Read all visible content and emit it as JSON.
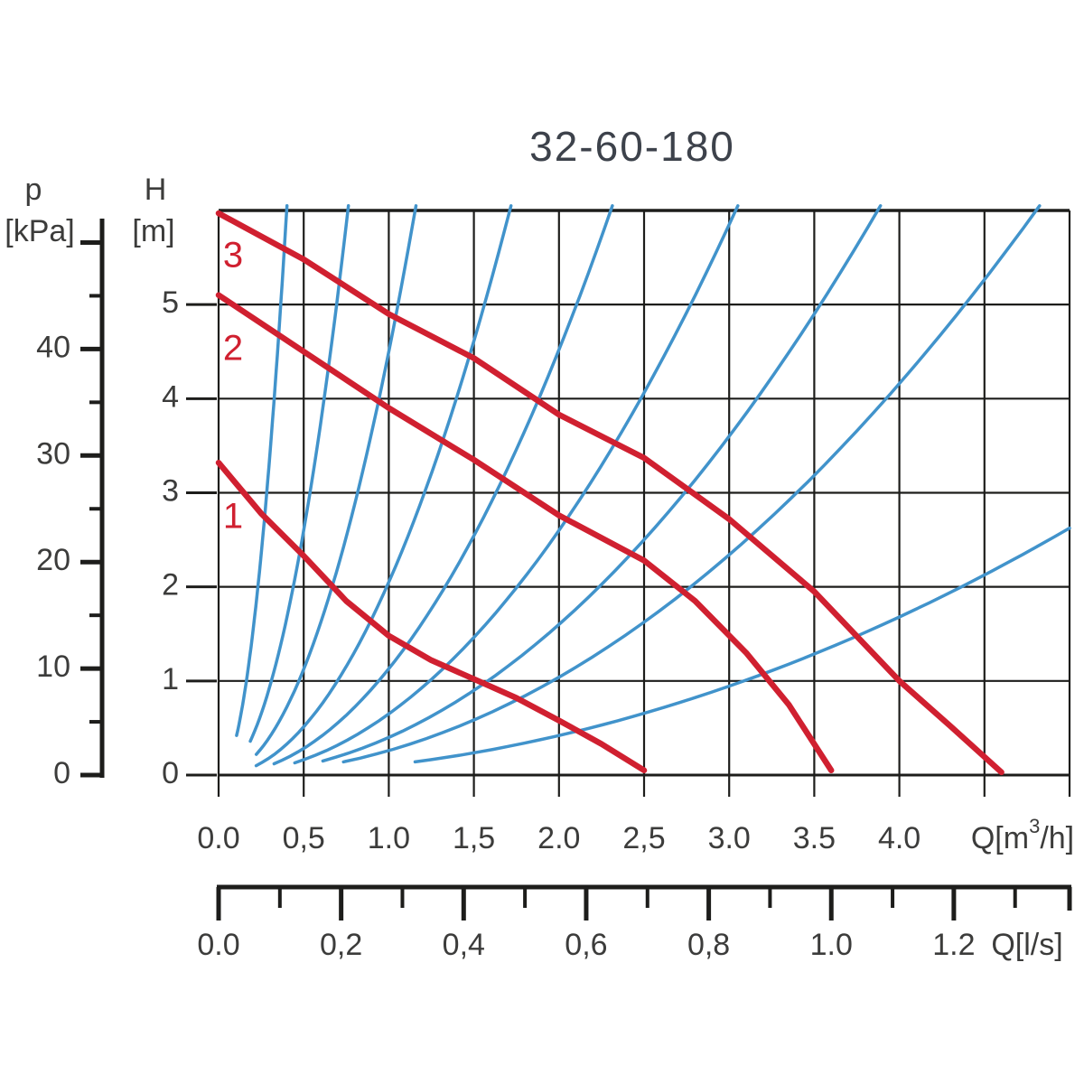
{
  "title": "32-60-180",
  "colors": {
    "pump_curve_red": "#d02030",
    "system_curve_blue": "#4193cb",
    "ink": "#1d1d1b",
    "text": "#3c3c3b",
    "title_text": "#3d424b"
  },
  "pressure_axis": {
    "name": "p",
    "unit": "[kPa]",
    "tick_labels": [
      "0",
      "10",
      "20",
      "30",
      "40"
    ],
    "tick_values": [
      0,
      10,
      20,
      30,
      40
    ],
    "range": [
      0,
      50
    ],
    "minor_step": 5,
    "major_step": 10
  },
  "head_axis": {
    "name": "H",
    "unit": "[m]",
    "tick_labels": [
      "0",
      "1",
      "2",
      "3",
      "4",
      "5"
    ],
    "tick_values": [
      0,
      1,
      2,
      3,
      4,
      5
    ]
  },
  "flow_axis_m3h": {
    "tick_labels": [
      "0.0",
      "0,5",
      "1.0",
      "1,5",
      "2.0",
      "2,5",
      "3.0",
      "3.5",
      "4.0"
    ],
    "tick_values": [
      0,
      0.5,
      1.0,
      1.5,
      2.0,
      2.5,
      3.0,
      3.5,
      4.0
    ],
    "unit_parts": {
      "pre": "Q[m",
      "sup": "3",
      "post": "/h]"
    }
  },
  "flow_axis_ls": {
    "tick_labels": [
      "0.0",
      "0,2",
      "0,4",
      "0,6",
      "0,8",
      "1.0",
      "1.2"
    ],
    "tick_values": [
      0,
      0.2,
      0.4,
      0.6,
      0.8,
      1.0,
      1.2
    ],
    "minor_step": 0.1,
    "unit": "Q[l/s]"
  },
  "chart_data": {
    "type": "line",
    "title": "32-60-180",
    "x_axis": {
      "label": "Q[m3/h]",
      "range": [
        0,
        5
      ],
      "gridline_step": 0.5,
      "labeled_max": 4.0
    },
    "y_axis": {
      "label": "H[m]",
      "range": [
        0,
        6
      ],
      "gridline_step": 1
    },
    "secondary_y_axis": {
      "label": "p[kPa]",
      "range": [
        0,
        50
      ],
      "tick_step": 5,
      "labeled_step": 10
    },
    "secondary_x_axis": {
      "label": "Q[l/s]",
      "range": [
        0,
        1.3
      ],
      "tick_step": 0.1,
      "labeled_step": 0.2
    },
    "grid": true,
    "pump_curves": [
      {
        "name": "speed-3",
        "label": "3",
        "points_q_h": [
          [
            0,
            5.97
          ],
          [
            0.5,
            5.48
          ],
          [
            1.0,
            4.9
          ],
          [
            1.5,
            4.43
          ],
          [
            2.0,
            3.83
          ],
          [
            2.5,
            3.37
          ],
          [
            3.0,
            2.72
          ],
          [
            3.5,
            1.95
          ],
          [
            4.0,
            1.0
          ],
          [
            4.3,
            0.52
          ],
          [
            4.6,
            0.03
          ]
        ]
      },
      {
        "name": "speed-2",
        "label": "2",
        "points_q_h": [
          [
            0,
            5.1
          ],
          [
            0.5,
            4.5
          ],
          [
            1.0,
            3.9
          ],
          [
            1.5,
            3.35
          ],
          [
            2.0,
            2.76
          ],
          [
            2.5,
            2.28
          ],
          [
            2.8,
            1.85
          ],
          [
            3.1,
            1.3
          ],
          [
            3.35,
            0.75
          ],
          [
            3.6,
            0.05
          ]
        ]
      },
      {
        "name": "speed-1",
        "label": "1",
        "points_q_h": [
          [
            0,
            3.32
          ],
          [
            0.25,
            2.78
          ],
          [
            0.5,
            2.33
          ],
          [
            0.75,
            1.85
          ],
          [
            1.0,
            1.48
          ],
          [
            1.25,
            1.22
          ],
          [
            1.5,
            1.02
          ],
          [
            1.75,
            0.82
          ],
          [
            2.0,
            0.58
          ],
          [
            2.25,
            0.33
          ],
          [
            2.5,
            0.05
          ]
        ]
      }
    ],
    "system_curves": [
      {
        "k": 37.5,
        "h_start": 0.42
      },
      {
        "k": 10.4,
        "h_start": 0.36
      },
      {
        "k": 4.5,
        "h_start": 0.22
      },
      {
        "k": 2.05,
        "h_start": 0.1
      },
      {
        "k": 1.13,
        "h_start": 0.12
      },
      {
        "k": 0.65,
        "h_start": 0.13
      },
      {
        "k": 0.4,
        "h_start": 0.15
      },
      {
        "k": 0.26,
        "h_start": 0.14
      },
      {
        "k": 0.105,
        "h_start": 0.14
      }
    ],
    "system_curve_model": "H = k * Q^2, drawn from h_start up to H=6 (top) or Q=5 (right edge)"
  }
}
